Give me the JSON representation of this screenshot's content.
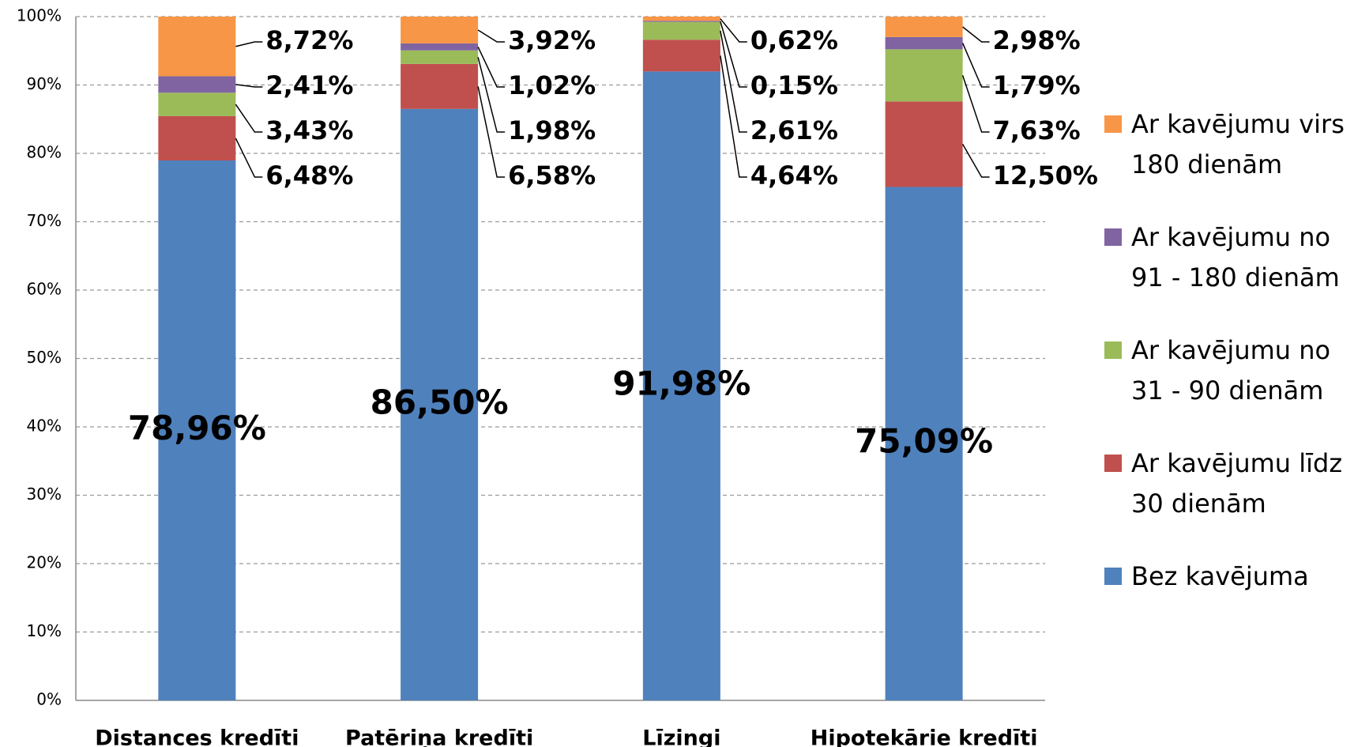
{
  "chart_data": {
    "type": "stacked_bar",
    "categories": [
      "Distances kredīti",
      "Patēriņa kredīti",
      "Līzingi",
      "Hipotekārie kredīti"
    ],
    "series": [
      {
        "name": "Bez kavējuma",
        "color": "#4f81bd",
        "values": [
          78.96,
          86.5,
          91.98,
          75.09
        ],
        "value_labels": [
          "78,96%",
          "86,50%",
          "91,98%",
          "75,09%"
        ]
      },
      {
        "name": "Ar kavējumu līdz 30 dienām",
        "color": "#c0504d",
        "values": [
          6.48,
          6.58,
          4.64,
          12.5
        ],
        "value_labels": [
          "6,48%",
          "6,58%",
          "4,64%",
          "12,50%"
        ]
      },
      {
        "name": "Ar kavējumu no 31 - 90 dienām",
        "color": "#9bbb59",
        "values": [
          3.43,
          1.98,
          2.61,
          7.63
        ],
        "value_labels": [
          "3,43%",
          "1,98%",
          "2,61%",
          "7,63%"
        ]
      },
      {
        "name": "Ar kavējumu no 91 - 180 dienām",
        "color": "#8064a2",
        "values": [
          2.41,
          1.02,
          0.15,
          1.79
        ],
        "value_labels": [
          "2,41%",
          "1,02%",
          "0,15%",
          "1,79%"
        ]
      },
      {
        "name": "Ar kavējumu virs 180 dienām",
        "color": "#f79646",
        "values": [
          8.72,
          3.92,
          0.62,
          2.98
        ],
        "value_labels": [
          "8,72%",
          "3,92%",
          "0,62%",
          "2,98%"
        ]
      }
    ],
    "ylim": [
      0,
      100
    ],
    "yticks": [
      {
        "value": 0,
        "label": "0%"
      },
      {
        "value": 10,
        "label": "10%"
      },
      {
        "value": 20,
        "label": "20%"
      },
      {
        "value": 30,
        "label": "30%"
      },
      {
        "value": 40,
        "label": "40%"
      },
      {
        "value": 50,
        "label": "50%"
      },
      {
        "value": 60,
        "label": "60%"
      },
      {
        "value": 70,
        "label": "70%"
      },
      {
        "value": 80,
        "label": "80%"
      },
      {
        "value": 90,
        "label": "90%"
      },
      {
        "value": 100,
        "label": "100%"
      }
    ],
    "grid": true,
    "legend": "right"
  }
}
